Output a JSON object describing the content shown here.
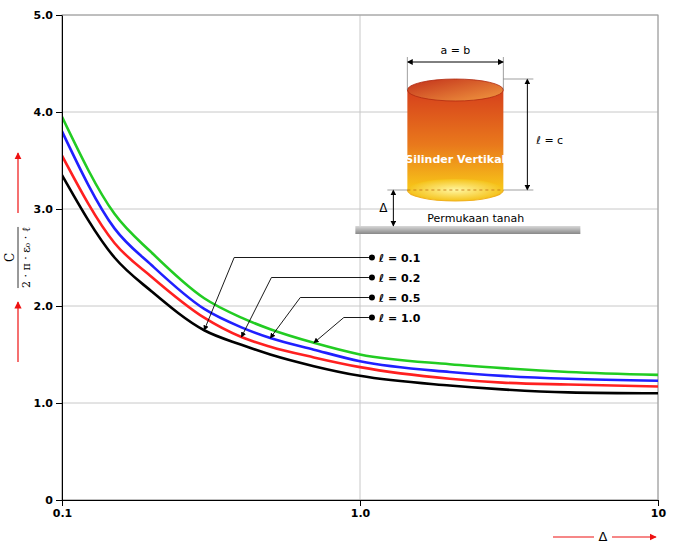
{
  "chart_data": {
    "type": "line",
    "x_label": "Δ",
    "y_label": {
      "numerator": "C",
      "denominator": "2 · π · ε₀ · ℓ"
    },
    "x": [
      0.1,
      0.15,
      0.2,
      0.3,
      0.4,
      0.5,
      0.7,
      1,
      2,
      3,
      5,
      10
    ],
    "series": [
      {
        "name": "ℓ = 0.1",
        "color": "#000000",
        "values": [
          3.35,
          2.5,
          2.15,
          1.75,
          1.6,
          1.5,
          1.38,
          1.28,
          1.18,
          1.14,
          1.11,
          1.1
        ]
      },
      {
        "name": "ℓ = 0.2",
        "color": "#ff2020",
        "values": [
          3.55,
          2.65,
          2.3,
          1.88,
          1.68,
          1.58,
          1.47,
          1.37,
          1.25,
          1.21,
          1.19,
          1.17
        ]
      },
      {
        "name": "ℓ = 0.5",
        "color": "#2020ff",
        "values": [
          3.8,
          2.8,
          2.42,
          1.97,
          1.78,
          1.67,
          1.55,
          1.43,
          1.32,
          1.28,
          1.25,
          1.23
        ]
      },
      {
        "name": "ℓ = 1.0",
        "color": "#22cc22",
        "values": [
          3.95,
          2.95,
          2.55,
          2.08,
          1.88,
          1.76,
          1.62,
          1.5,
          1.4,
          1.36,
          1.32,
          1.29
        ]
      }
    ],
    "xlim": [
      0.1,
      10
    ],
    "ylim": [
      0,
      5
    ],
    "xticks": [
      0.1,
      {
        "value": 1,
        "label": "1.0"
      },
      10
    ],
    "yticks": [
      0,
      {
        "value": 1,
        "label": "1.0"
      },
      {
        "value": 2,
        "label": "2.0"
      },
      {
        "value": 3,
        "label": "3.0"
      },
      {
        "value": 4,
        "label": "4.0"
      },
      {
        "value": 5,
        "label": "5.0"
      }
    ],
    "log": "x",
    "grid": true,
    "legend": "center",
    "inset": {
      "title": "Silinder Vertikal",
      "width_label": "a = b",
      "height_label": "ℓ = c",
      "gap_label": "Δ",
      "ground_label": "Permukaan tanah"
    }
  }
}
